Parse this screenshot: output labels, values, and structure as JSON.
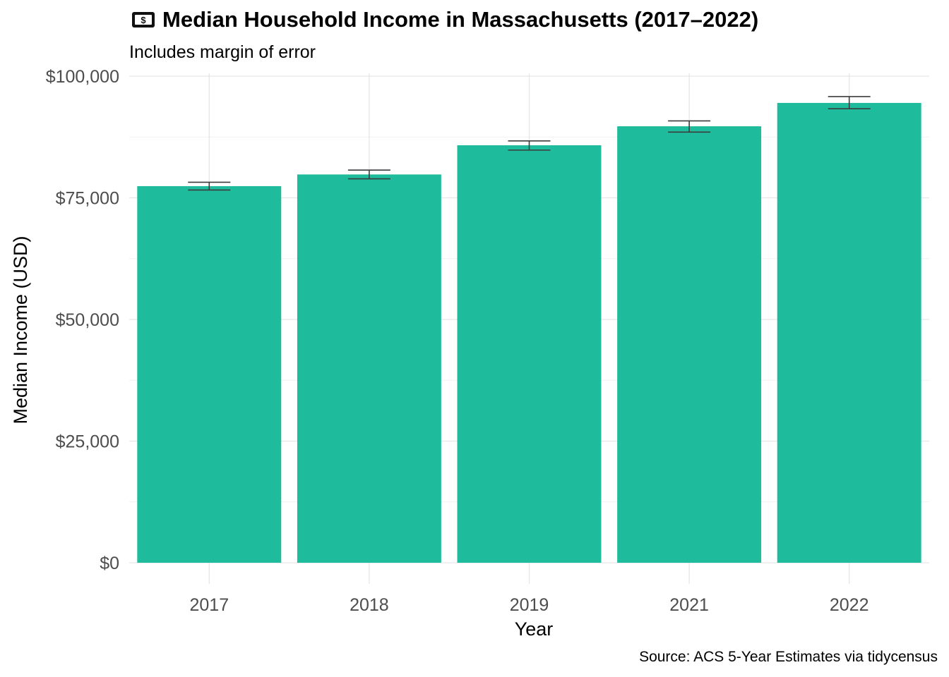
{
  "chart_data": {
    "type": "bar",
    "title": "Median Household Income in Massachusetts (2017–2022)",
    "title_icon": "money-icon",
    "subtitle": "Includes margin of error",
    "caption": "Source: ACS 5-Year Estimates via tidycensus",
    "xlabel": "Year",
    "ylabel": "Median Income (USD)",
    "categories": [
      "2017",
      "2018",
      "2019",
      "2021",
      "2022"
    ],
    "values": [
      77400,
      79800,
      85800,
      89700,
      94500
    ],
    "error_low": [
      76600,
      78900,
      84800,
      88500,
      93300
    ],
    "error_high": [
      78200,
      80700,
      86700,
      90800,
      95800
    ],
    "ylim": [
      0,
      100000
    ],
    "y_ticks": [
      0,
      25000,
      50000,
      75000,
      100000
    ],
    "y_tick_labels": [
      "$0",
      "$25,000",
      "$50,000",
      "$75,000",
      "$100,000"
    ],
    "grid": true,
    "legend": "none",
    "colors": {
      "bar": "#1ebc9c",
      "error_bar": "#3c3c3c",
      "grid_major": "#e6e6e6",
      "grid_minor": "#f1f1f1"
    }
  }
}
